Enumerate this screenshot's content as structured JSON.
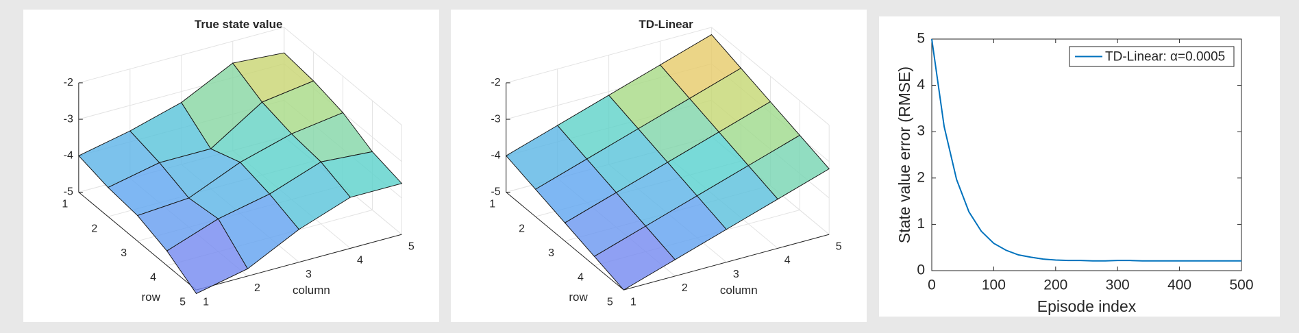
{
  "chart_data": [
    {
      "type": "surface",
      "title": "True state value",
      "xlabel": "column",
      "ylabel": "row",
      "rows": [
        1,
        2,
        3,
        4,
        5
      ],
      "columns": [
        1,
        2,
        3,
        4,
        5
      ],
      "z": [
        [
          -4.0,
          -3.7,
          -3.3,
          -2.6,
          -2.7
        ],
        [
          -4.2,
          -3.9,
          -3.9,
          -3.0,
          -2.8
        ],
        [
          -4.3,
          -4.2,
          -3.6,
          -3.2,
          -3.0
        ],
        [
          -4.6,
          -4.1,
          -3.8,
          -3.3,
          -3.4
        ],
        [
          -5.1,
          -4.8,
          -4.1,
          -3.6,
          -3.6
        ]
      ],
      "zlim": [
        -5,
        -2
      ],
      "zticks": [
        -5,
        -4,
        -3,
        -2
      ],
      "grid": true
    },
    {
      "type": "surface",
      "title": "TD-Linear",
      "xlabel": "column",
      "ylabel": "row",
      "rows": [
        1,
        2,
        3,
        4,
        5
      ],
      "columns": [
        1,
        2,
        3,
        4,
        5
      ],
      "z": [
        [
          -4.0,
          -3.55,
          -3.1,
          -2.65,
          -2.2
        ],
        [
          -4.25,
          -3.8,
          -3.35,
          -2.9,
          -2.45
        ],
        [
          -4.5,
          -4.05,
          -3.6,
          -3.15,
          -2.7
        ],
        [
          -4.75,
          -4.3,
          -3.85,
          -3.4,
          -2.95
        ],
        [
          -5.0,
          -4.55,
          -4.1,
          -3.65,
          -3.2
        ]
      ],
      "zlim": [
        -5,
        -2
      ],
      "zticks": [
        -5,
        -4,
        -3,
        -2
      ],
      "grid": true
    },
    {
      "type": "line",
      "xlabel": "Episode index",
      "ylabel": "State value error (RMSE)",
      "x": [
        0,
        20,
        40,
        60,
        80,
        100,
        120,
        140,
        160,
        180,
        200,
        220,
        240,
        260,
        280,
        300,
        320,
        340,
        360,
        380,
        400,
        420,
        440,
        460,
        480,
        500
      ],
      "series": [
        {
          "name": "TD-Linear: α=0.0005",
          "color": "#0072bd",
          "values": [
            5.0,
            3.11,
            1.97,
            1.27,
            0.85,
            0.59,
            0.44,
            0.34,
            0.29,
            0.25,
            0.23,
            0.22,
            0.22,
            0.21,
            0.21,
            0.22,
            0.22,
            0.21,
            0.21,
            0.21,
            0.21,
            0.21,
            0.21,
            0.21,
            0.21,
            0.21
          ]
        }
      ],
      "xlim": [
        0,
        500
      ],
      "ylim": [
        0,
        5
      ],
      "xticks": [
        0,
        100,
        200,
        300,
        400,
        500
      ],
      "yticks": [
        0,
        1,
        2,
        3,
        4,
        5
      ],
      "legend": "upper right"
    }
  ]
}
